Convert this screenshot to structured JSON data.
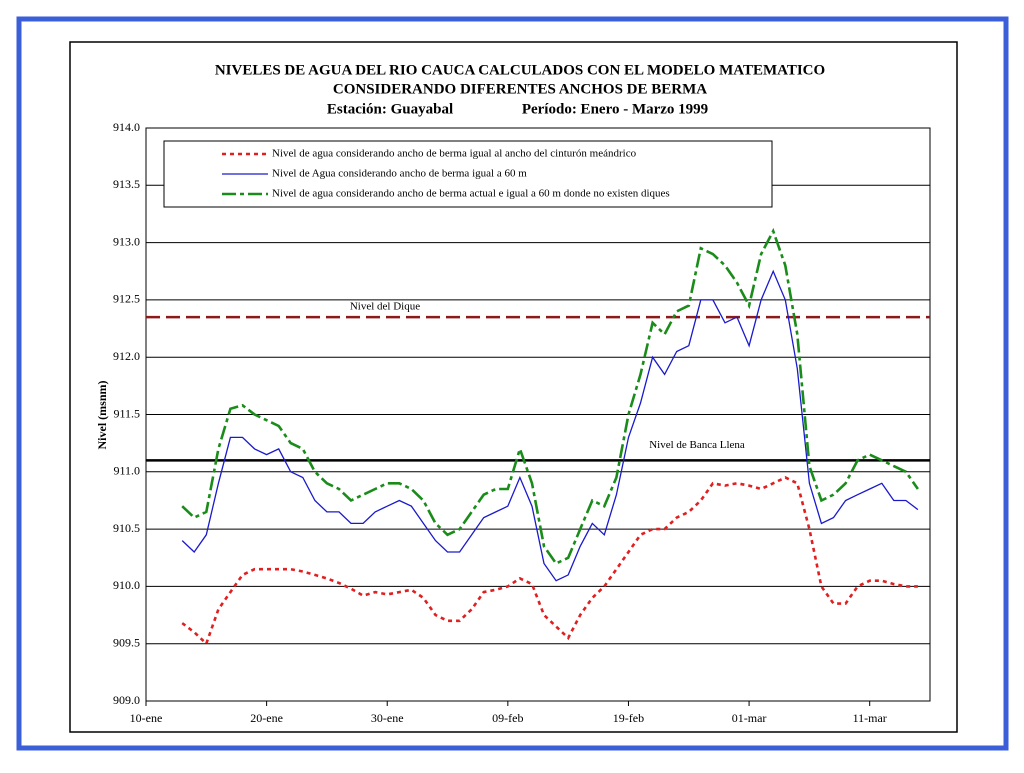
{
  "chart_data": {
    "type": "line",
    "title": [
      "NIVELES DE AGUA DEL RIO CAUCA CALCULADOS CON EL MODELO MATEMATICO",
      "CONSIDERANDO DIFERENTES ANCHOS DE BERMA"
    ],
    "subtitle": [
      "Estación: Guayabal",
      "Período: Enero - Marzo 1999"
    ],
    "ylabel": "Nivel (msnm)",
    "categories": [
      "10-ene",
      null,
      null,
      null,
      null,
      null,
      null,
      null,
      null,
      null,
      "20-ene",
      null,
      null,
      null,
      null,
      null,
      null,
      null,
      null,
      null,
      "30-ene",
      null,
      null,
      null,
      null,
      null,
      null,
      null,
      null,
      null,
      "09-feb",
      null,
      null,
      null,
      null,
      null,
      null,
      null,
      null,
      null,
      "19-feb",
      null,
      null,
      null,
      null,
      null,
      null,
      null,
      null,
      null,
      "01-mar",
      null,
      null,
      null,
      null,
      null,
      null,
      null,
      null,
      null,
      "11-mar",
      null,
      null,
      null,
      null,
      null
    ],
    "ylim": [
      909,
      914
    ],
    "yticks": [
      {
        "value": 909,
        "label": "909.0"
      },
      {
        "value": 909.5,
        "label": "909.5"
      },
      {
        "value": 910,
        "label": "910.0"
      },
      {
        "value": 910.5,
        "label": "910.5"
      },
      {
        "value": 911,
        "label": "911.0"
      },
      {
        "value": 911.5,
        "label": "911.5"
      },
      {
        "value": 912,
        "label": "912.0"
      },
      {
        "value": 912.5,
        "label": "912.5"
      },
      {
        "value": 913,
        "label": "913.0"
      },
      {
        "value": 913.5,
        "label": "913.5"
      },
      {
        "value": 914,
        "label": "914.0"
      }
    ],
    "grid": true,
    "series": [
      {
        "name": "Nivel de agua considerando ancho de berma igual al ancho del  cinturón meándrico",
        "color": "#e02020",
        "dash": "dotted",
        "values": [
          null,
          null,
          null,
          909.68,
          909.6,
          909.5,
          909.8,
          909.95,
          910.1,
          910.15,
          910.15,
          910.15,
          910.15,
          910.13,
          910.1,
          910.07,
          910.03,
          909.98,
          909.92,
          909.95,
          909.93,
          909.95,
          909.97,
          909.9,
          909.75,
          909.7,
          909.7,
          909.8,
          909.95,
          909.97,
          910.0,
          910.07,
          910.02,
          909.75,
          909.65,
          909.55,
          909.75,
          909.9,
          910.0,
          910.15,
          910.3,
          910.45,
          910.5,
          910.5,
          910.6,
          910.65,
          910.75,
          910.9,
          910.88,
          910.9,
          910.88,
          910.85,
          910.9,
          910.95,
          910.9,
          910.5,
          910.0,
          909.85,
          909.85,
          910.0,
          910.05,
          910.05,
          910.02,
          910.0,
          910.0,
          null
        ]
      },
      {
        "name": "Nivel de Agua considerando  ancho de berma igual a 60 m",
        "color": "#1a1acc",
        "dash": "solid",
        "values": [
          null,
          null,
          null,
          910.4,
          910.3,
          910.45,
          910.9,
          911.3,
          911.3,
          911.2,
          911.15,
          911.2,
          911.0,
          910.95,
          910.75,
          910.65,
          910.65,
          910.55,
          910.55,
          910.65,
          910.7,
          910.75,
          910.7,
          910.55,
          910.4,
          910.3,
          910.3,
          910.45,
          910.6,
          910.65,
          910.7,
          910.95,
          910.7,
          910.2,
          910.05,
          910.1,
          910.35,
          910.55,
          910.45,
          910.8,
          911.3,
          911.6,
          912.0,
          911.85,
          912.05,
          912.1,
          912.5,
          912.5,
          912.3,
          912.35,
          912.1,
          912.5,
          912.75,
          912.5,
          911.9,
          910.9,
          910.55,
          910.6,
          910.75,
          910.8,
          910.85,
          910.9,
          910.75,
          910.75,
          910.67,
          null
        ]
      },
      {
        "name": "Nivel de agua considerando ancho de berma actual e igual a 60 m donde no existen diques",
        "color": "#1a8c1a",
        "dash": "dashdot",
        "values": [
          null,
          null,
          null,
          910.7,
          910.6,
          910.65,
          911.2,
          911.55,
          911.58,
          911.5,
          911.45,
          911.4,
          911.25,
          911.2,
          911.0,
          910.9,
          910.85,
          910.75,
          910.8,
          910.85,
          910.9,
          910.9,
          910.85,
          910.75,
          910.55,
          910.45,
          910.5,
          910.65,
          910.8,
          910.85,
          910.85,
          911.2,
          910.9,
          910.35,
          910.2,
          910.25,
          910.5,
          910.75,
          910.7,
          910.95,
          911.5,
          911.85,
          912.3,
          912.2,
          912.4,
          912.45,
          912.95,
          912.9,
          912.8,
          912.65,
          912.45,
          912.9,
          913.1,
          912.8,
          912.2,
          911.05,
          910.75,
          910.8,
          910.9,
          911.1,
          911.15,
          911.1,
          911.05,
          911.0,
          910.85,
          null
        ]
      }
    ],
    "reference_lines": [
      {
        "label": "Nivel del Dique",
        "value": 912.35,
        "color": "#8b1a1a",
        "dash": "dashed"
      },
      {
        "label": "Nivel de Banca Llena",
        "value": 911.1,
        "color": "#000000",
        "dash": "solid"
      }
    ]
  }
}
